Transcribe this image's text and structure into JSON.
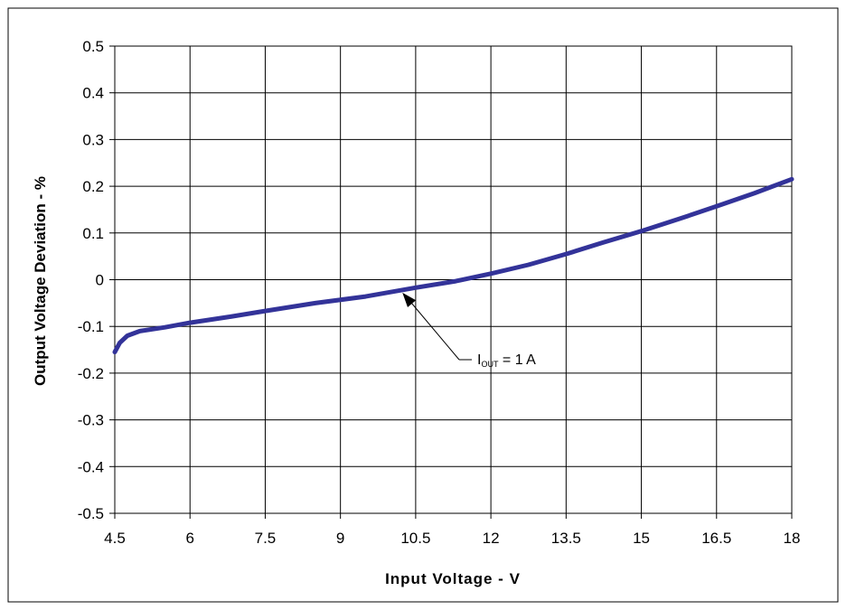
{
  "chart_data": {
    "type": "line",
    "title": "",
    "xlabel": "Input Voltage - V",
    "ylabel": "Output Voltage Deviation - %",
    "xlim": [
      4.5,
      18
    ],
    "ylim": [
      -0.5,
      0.5
    ],
    "x_ticks": [
      "4.5",
      "6",
      "7.5",
      "9",
      "10.5",
      "12",
      "13.5",
      "15",
      "16.5",
      "18"
    ],
    "y_ticks": [
      "0.5",
      "0.4",
      "0.3",
      "0.2",
      "0.1",
      "0",
      "-0.1",
      "-0.2",
      "-0.3",
      "-0.4",
      "-0.5"
    ],
    "grid": true,
    "series": [
      {
        "color": "#333399",
        "x": [
          4.5,
          4.6,
          4.75,
          5.0,
          5.5,
          6.0,
          6.75,
          7.5,
          8.5,
          9.5,
          10.5,
          11.3,
          12.0,
          12.75,
          13.5,
          14.25,
          15.0,
          15.75,
          16.5,
          17.25,
          18.0
        ],
        "y": [
          -0.155,
          -0.135,
          -0.12,
          -0.11,
          -0.102,
          -0.092,
          -0.08,
          -0.067,
          -0.05,
          -0.036,
          -0.017,
          -0.003,
          0.013,
          0.032,
          0.055,
          0.08,
          0.104,
          0.13,
          0.157,
          0.185,
          0.215
        ]
      }
    ],
    "annotation": {
      "prefix": "I",
      "subscript": "OUT",
      "suffix": " = 1 A",
      "target_x": 10.2,
      "target_y": -0.022
    }
  }
}
